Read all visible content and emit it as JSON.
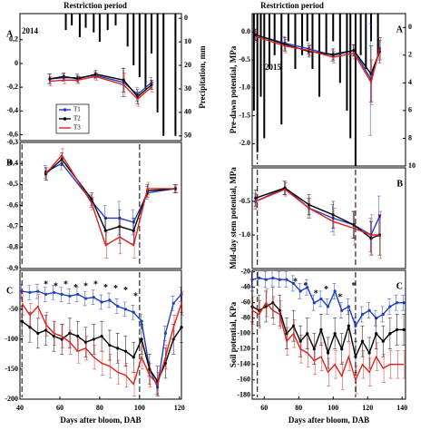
{
  "chart_data": [
    {
      "type": "line",
      "panel": "A",
      "year": "2014",
      "annotation": "Restriction period",
      "ylabel": "Precipitation, mm",
      "x": [
        55,
        62,
        69,
        78,
        92,
        99,
        106
      ],
      "series": [
        {
          "name": "T1",
          "color": "#1f3fbf",
          "values": [
            -0.13,
            -0.12,
            -0.12,
            -0.1,
            -0.16,
            -0.26,
            -0.16
          ],
          "errors": [
            0.04,
            0.03,
            0.03,
            0.03,
            0.12,
            0.06,
            0.04
          ]
        },
        {
          "name": "T2",
          "color": "#000000",
          "values": [
            -0.13,
            -0.11,
            -0.13,
            -0.09,
            -0.14,
            -0.28,
            -0.18
          ],
          "errors": [
            0.04,
            0.03,
            0.03,
            0.03,
            0.1,
            0.06,
            0.04
          ]
        },
        {
          "name": "T3",
          "color": "#e0201b",
          "values": [
            -0.15,
            -0.14,
            -0.14,
            -0.11,
            -0.18,
            -0.3,
            -0.2
          ],
          "errors": [
            0.04,
            0.03,
            0.03,
            0.03,
            0.1,
            0.06,
            0.04
          ]
        }
      ],
      "xlim": [
        40,
        121
      ],
      "ylim": [
        -0.65,
        0.42
      ],
      "yticks": [
        {
          "value": 0.2,
          "label": "0,2"
        },
        0,
        {
          "value": -0.2,
          "label": "-0,2"
        },
        {
          "value": -0.4,
          "label": "-0,4"
        },
        {
          "value": -0.6,
          "label": "-0,6"
        }
      ],
      "y2lim": [
        -2,
        52
      ],
      "y2_inverted": true,
      "y2ticks": [
        0,
        10,
        20,
        30,
        40,
        50
      ],
      "precip": {
        "x": [
          63,
          66,
          70,
          73,
          77,
          80,
          84,
          88,
          94,
          97,
          100,
          103,
          106,
          109,
          112,
          118
        ],
        "values": [
          5,
          3,
          8,
          4,
          6,
          10,
          5,
          3,
          12,
          20,
          25,
          30,
          15,
          40,
          50,
          50
        ]
      },
      "legend": "lower left"
    },
    {
      "type": "line",
      "panel": "B",
      "x": [
        53,
        61,
        76,
        83,
        90,
        97,
        104,
        118
      ],
      "series": [
        {
          "name": "T1",
          "color": "#1f3fbf",
          "values": [
            -0.44,
            -0.4,
            -0.58,
            -0.66,
            -0.66,
            -0.68,
            -0.54,
            -0.52
          ],
          "errors": [
            0.03,
            0.03,
            0.03,
            0.06,
            0.08,
            0.06,
            0.03,
            0.02
          ]
        },
        {
          "name": "T2",
          "color": "#000000",
          "values": [
            -0.45,
            -0.38,
            -0.57,
            -0.72,
            -0.7,
            -0.72,
            -0.53,
            -0.52
          ],
          "errors": [
            0.03,
            0.03,
            0.03,
            0.06,
            0.08,
            0.06,
            0.03,
            0.02
          ]
        },
        {
          "name": "T3",
          "color": "#e0201b",
          "values": [
            -0.45,
            -0.36,
            -0.59,
            -0.79,
            -0.75,
            -0.79,
            -0.52,
            -0.52
          ],
          "errors": [
            0.03,
            0.03,
            0.03,
            0.06,
            0.08,
            0.06,
            0.03,
            0.02
          ]
        }
      ],
      "xlim": [
        40,
        121
      ],
      "ylim": [
        -0.9,
        -0.3
      ],
      "yticks": [
        {
          "value": -0.3,
          "label": "-0,3"
        },
        {
          "value": -0.4,
          "label": "-0,4"
        },
        {
          "value": -0.5,
          "label": "-0,5"
        },
        {
          "value": -0.6,
          "label": "-0,6"
        },
        {
          "value": -0.7,
          "label": "-0,7"
        },
        {
          "value": -0.8,
          "label": "-0,8"
        },
        {
          "value": -0.9,
          "label": "-0,9"
        }
      ],
      "dashed_lines": [
        41,
        100
      ]
    },
    {
      "type": "line",
      "panel": "C",
      "xlabel": "Days after bloom, DAB",
      "x": [
        41,
        45,
        49,
        53,
        57,
        61,
        65,
        69,
        73,
        77,
        81,
        85,
        89,
        93,
        97,
        101,
        105,
        109,
        113,
        117,
        121
      ],
      "series": [
        {
          "name": "T1",
          "color": "#1f3fbf",
          "values": [
            -20,
            -22,
            -20,
            -25,
            -22,
            -25,
            -28,
            -25,
            -32,
            -30,
            -38,
            -35,
            -45,
            -50,
            -55,
            -70,
            -150,
            -180,
            -90,
            -40,
            -25
          ],
          "error": 12
        },
        {
          "name": "T2",
          "color": "#000000",
          "values": [
            -70,
            -80,
            -90,
            -85,
            -95,
            -100,
            -90,
            -95,
            -105,
            -100,
            -95,
            -110,
            -115,
            -120,
            -130,
            -100,
            -150,
            -170,
            -140,
            -100,
            -80
          ],
          "error": 25
        },
        {
          "name": "T3",
          "color": "#e0201b",
          "values": [
            -40,
            -60,
            -45,
            -75,
            -90,
            -95,
            -105,
            -120,
            -115,
            -130,
            -140,
            -145,
            -155,
            -160,
            -175,
            -130,
            -160,
            -175,
            -130,
            -80,
            -40
          ],
          "error": 20
        }
      ],
      "xlim": [
        40,
        121
      ],
      "ylim": [
        -200,
        15
      ],
      "yticks": [
        -50,
        -100,
        -150,
        -200
      ],
      "xticks": [
        40,
        60,
        80,
        100,
        120
      ],
      "dashed_lines": [
        41,
        100
      ],
      "stars": {
        "label": "*",
        "x": [
          53,
          58,
          63,
          68,
          73,
          78,
          83,
          88,
          93,
          98
        ],
        "y": [
          -5,
          -8,
          -5,
          -10,
          -8,
          -5,
          -10,
          -12,
          -15,
          -25
        ]
      }
    },
    {
      "type": "line",
      "panel": "A",
      "year": "2015",
      "annotation": "Restriction period",
      "ylabel": "Pre-dawn potential, MPa",
      "x": [
        55,
        72,
        86,
        100,
        112,
        122,
        127
      ],
      "series": [
        {
          "name": "T1",
          "color": "#1f3fbf",
          "values": [
            -0.05,
            -0.2,
            -0.3,
            -0.42,
            -0.33,
            -0.85,
            -0.3
          ],
          "errors": [
            0.1,
            0.12,
            0.1,
            0.1,
            0.1,
            1.0,
            0.2
          ]
        },
        {
          "name": "T2",
          "color": "#000000",
          "values": [
            -0.05,
            -0.22,
            -0.35,
            -0.4,
            -0.33,
            -0.75,
            -0.35
          ],
          "errors": [
            0.1,
            0.12,
            0.1,
            0.1,
            0.1,
            0.5,
            0.2
          ]
        },
        {
          "name": "T3",
          "color": "#e0201b",
          "values": [
            -0.08,
            -0.25,
            -0.33,
            -0.45,
            -0.38,
            -0.9,
            -0.3
          ],
          "errors": [
            0.1,
            0.12,
            0.1,
            0.1,
            0.1,
            0.4,
            0.2
          ]
        }
      ],
      "xlim": [
        53,
        142
      ],
      "ylim": [
        -2.4,
        0.33
      ],
      "yticks": [
        {
          "value": 0,
          "label": "0.0"
        },
        -0.5,
        {
          "value": -1,
          "label": "-1.0"
        },
        -1.5,
        {
          "value": -2,
          "label": "-2.0"
        }
      ],
      "y2lim": [
        -1,
        10
      ],
      "y2_inverted": true,
      "y2ticks": [
        0,
        2,
        4,
        6,
        8,
        10
      ],
      "precip": {
        "x": [
          54,
          56,
          58,
          60,
          63,
          66,
          70,
          74,
          78,
          82,
          85,
          88,
          92,
          96,
          100,
          104,
          108,
          110,
          113,
          116,
          119,
          122,
          126
        ],
        "values": [
          6,
          9,
          5,
          8,
          3,
          2,
          7,
          1,
          3,
          2,
          1,
          3,
          5,
          2,
          1,
          4,
          6,
          8,
          10,
          2,
          3,
          1,
          2
        ]
      },
      "dashed_lines": [
        56,
        113
      ]
    },
    {
      "type": "line",
      "panel": "B",
      "ylabel": "Mid-day stem potential, MPa",
      "x": [
        55,
        72,
        86,
        100,
        112,
        122,
        127
      ],
      "series": [
        {
          "name": "T1",
          "color": "#1f3fbf",
          "values": [
            -0.5,
            -0.3,
            -0.6,
            -0.75,
            -0.85,
            -1.0,
            -0.72
          ],
          "errors": [
            0.12,
            0.1,
            0.15,
            0.2,
            0.2,
            0.25,
            0.3
          ]
        },
        {
          "name": "T2",
          "color": "#000000",
          "values": [
            -0.45,
            -0.3,
            -0.55,
            -0.7,
            -0.85,
            -1.05,
            -1.0
          ],
          "errors": [
            0.12,
            0.1,
            0.15,
            0.2,
            0.2,
            0.25,
            0.3
          ]
        },
        {
          "name": "T3",
          "color": "#e0201b",
          "values": [
            -0.5,
            -0.32,
            -0.6,
            -0.8,
            -0.9,
            -1.0,
            -1.0
          ],
          "errors": [
            0.12,
            0.1,
            0.15,
            0.2,
            0.25,
            0.3,
            0.35
          ]
        }
      ],
      "xlim": [
        53,
        142
      ],
      "ylim": [
        -1.5,
        0
      ],
      "yticks": [
        -0.5,
        {
          "value": -1,
          "label": "-1.0"
        }
      ],
      "dashed_lines": [
        56,
        113
      ]
    },
    {
      "type": "line",
      "panel": "C",
      "ylabel": "Soil potential, KPa",
      "xlabel": "Days after bloom, DAB",
      "x": [
        53,
        57,
        61,
        65,
        69,
        73,
        77,
        81,
        85,
        89,
        93,
        97,
        101,
        105,
        109,
        113,
        117,
        121,
        125,
        129,
        133,
        137,
        141
      ],
      "series": [
        {
          "name": "T1",
          "color": "#1f3fbf",
          "values": [
            -30,
            -28,
            -30,
            -28,
            -30,
            -30,
            -35,
            -45,
            -40,
            -60,
            -55,
            -65,
            -45,
            -70,
            -65,
            -90,
            -75,
            -70,
            -80,
            -75,
            -65,
            -60,
            -60
          ],
          "error": 10
        },
        {
          "name": "T2",
          "color": "#000000",
          "values": [
            -65,
            -70,
            -65,
            -60,
            -70,
            -100,
            -90,
            -110,
            -100,
            -120,
            -95,
            -125,
            -100,
            -120,
            -90,
            -130,
            -110,
            -125,
            -100,
            -110,
            -100,
            -95,
            -95
          ],
          "error": 20
        },
        {
          "name": "T3",
          "color": "#e0201b",
          "values": [
            -70,
            -75,
            -60,
            -70,
            -75,
            -110,
            -100,
            -120,
            -125,
            -135,
            -130,
            -150,
            -140,
            -155,
            -130,
            -160,
            -140,
            -150,
            -130,
            -145,
            -140,
            -140,
            -140
          ],
          "error": 18
        }
      ],
      "xlim": [
        53,
        142
      ],
      "ylim": [
        -185,
        -18
      ],
      "yticks": [
        -20,
        -40,
        -60,
        -80,
        -100,
        -120,
        -140,
        -160,
        -180
      ],
      "xticks": [
        60,
        80,
        100,
        120,
        140
      ],
      "dashed_lines": [
        56,
        113
      ],
      "stars": {
        "label": "*",
        "x": [
          78,
          84,
          90,
          96,
          104,
          112
        ],
        "y": [
          -30,
          -35,
          -45,
          -40,
          -50,
          -35
        ]
      }
    }
  ]
}
